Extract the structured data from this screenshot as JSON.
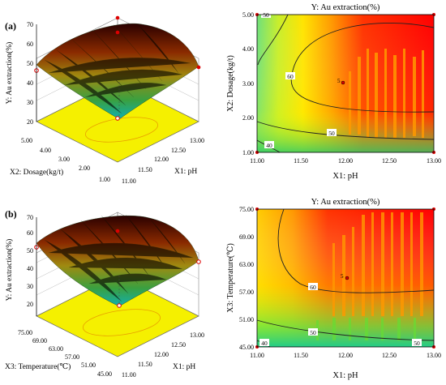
{
  "panel_labels": {
    "a": "(a)",
    "b": "(b)"
  },
  "chart_data": [
    {
      "type": "surface",
      "panel": "(a)",
      "title": "",
      "zlabel": "Y: Au extraction(%)",
      "xlabel": "X1: pH",
      "ylabel": "X2: Dosage(kg/t)",
      "x_ticks": [
        "11.00",
        "11.50",
        "12.00",
        "12.50",
        "13.00"
      ],
      "y_ticks": [
        "1.00",
        "2.00",
        "3.00",
        "4.00",
        "5.00"
      ],
      "z_ticks": [
        "20",
        "30",
        "40",
        "50",
        "60",
        "70"
      ],
      "zlim": [
        20,
        70
      ]
    },
    {
      "type": "contour",
      "panel": "(a)",
      "title": "Y: Au extraction(%)",
      "xlabel": "X1: pH",
      "ylabel": "X2: Dosage(kg/t)",
      "x_ticks": [
        "11.00",
        "11.50",
        "12.00",
        "12.50",
        "13.00"
      ],
      "y_ticks": [
        "1.00",
        "2.00",
        "3.00",
        "4.00",
        "5.00"
      ],
      "xlim": [
        11,
        13
      ],
      "ylim": [
        1,
        5
      ],
      "contour_labels": [
        "40",
        "50",
        "60",
        "50"
      ],
      "center_point": {
        "x": 12.0,
        "y": 3.0,
        "label": "5"
      }
    },
    {
      "type": "surface",
      "panel": "(b)",
      "title": "",
      "zlabel": "Y: Au extraction(%)",
      "xlabel": "X1: pH",
      "ylabel": "X3: Temperature(℃)",
      "x_ticks": [
        "11.00",
        "11.50",
        "12.00",
        "12.50",
        "13.00"
      ],
      "y_ticks": [
        "45.00",
        "51.00",
        "57.00",
        "63.00",
        "69.00",
        "75.00"
      ],
      "z_ticks": [
        "20",
        "30",
        "40",
        "50",
        "60",
        "70"
      ],
      "zlim": [
        20,
        70
      ]
    },
    {
      "type": "contour",
      "panel": "(b)",
      "title": "Y: Au extraction(%)",
      "xlabel": "X1: pH",
      "ylabel": "X3: Temperature(℃)",
      "x_ticks": [
        "11.00",
        "11.50",
        "12.00",
        "12.50",
        "13.00"
      ],
      "y_ticks": [
        "45.00",
        "51.00",
        "57.00",
        "63.00",
        "69.00",
        "75.00"
      ],
      "xlim": [
        11,
        13
      ],
      "ylim": [
        45,
        75
      ],
      "contour_labels": [
        "40",
        "50",
        "60",
        "50"
      ],
      "center_point": {
        "x": 12.0,
        "y": 60.0,
        "label": "5"
      }
    }
  ]
}
